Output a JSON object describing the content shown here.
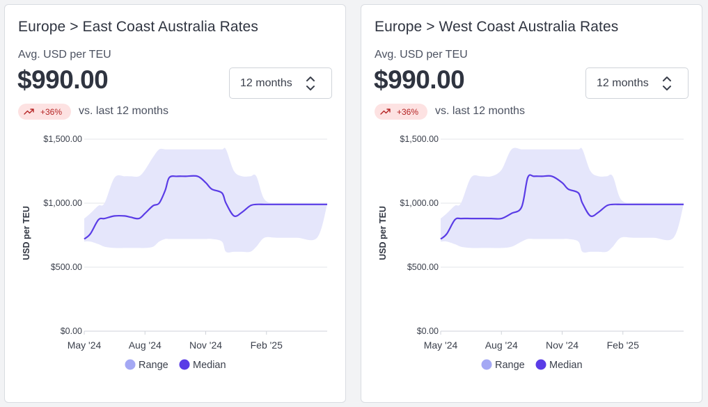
{
  "cards": [
    {
      "title": "Europe > East Coast Australia Rates",
      "subtitle": "Avg. USD per TEU",
      "value": "$990.00",
      "period_select": "12 months",
      "change_badge": "+36%",
      "comparison": "vs. last 12 months",
      "chart_data": {
        "type": "area",
        "ylabel": "USD per TEU",
        "y_ticks": [
          "$1,500.00",
          "$1,000.00",
          "$500.00",
          "$0.00"
        ],
        "x_ticks": [
          "May '24",
          "Aug '24",
          "Nov '24",
          "Feb '25"
        ],
        "ylim": [
          0,
          1500
        ],
        "xlim": [
          0,
          12
        ],
        "grid": "horizontal",
        "legend_placement": "bottom",
        "legend": [
          "Range",
          "Median"
        ],
        "x": [
          0,
          0.3,
          0.7,
          1.0,
          1.5,
          2.0,
          2.3,
          2.7,
          3.0,
          3.4,
          3.7,
          4.0,
          4.2,
          4.6,
          5.0,
          5.6,
          6.0,
          6.3,
          6.8,
          7.0,
          7.4,
          7.8,
          8.2,
          8.5,
          8.9,
          9.5,
          10.5,
          11.5,
          12.0
        ],
        "median": [
          720,
          760,
          870,
          880,
          900,
          900,
          890,
          880,
          920,
          980,
          1000,
          1100,
          1200,
          1210,
          1210,
          1210,
          1160,
          1110,
          1080,
          1000,
          900,
          930,
          980,
          990,
          990,
          990,
          990,
          990,
          990
        ],
        "range_upper": [
          880,
          920,
          980,
          1000,
          1200,
          1210,
          1210,
          1210,
          1260,
          1360,
          1420,
          1420,
          1420,
          1420,
          1420,
          1420,
          1420,
          1420,
          1420,
          1420,
          1250,
          1210,
          1210,
          1210,
          1030,
          1000,
          1000,
          1000,
          1000
        ],
        "range_lower": [
          700,
          700,
          680,
          660,
          650,
          650,
          650,
          650,
          650,
          660,
          700,
          720,
          720,
          720,
          720,
          720,
          720,
          720,
          700,
          620,
          620,
          620,
          620,
          660,
          730,
          730,
          730,
          730,
          990
        ],
        "colors": {
          "range": "#e5e6fb",
          "range_legend": "#a4a8f4",
          "median": "#5a3ce6"
        }
      }
    },
    {
      "title": "Europe > West Coast Australia Rates",
      "subtitle": "Avg. USD per TEU",
      "value": "$990.00",
      "period_select": "12 months",
      "change_badge": "+36%",
      "comparison": "vs. last 12 months",
      "chart_data": {
        "type": "area",
        "ylabel": "USD per TEU",
        "y_ticks": [
          "$1,500.00",
          "$1,000.00",
          "$500.00",
          "$0.00"
        ],
        "x_ticks": [
          "May '24",
          "Aug '24",
          "Nov '24",
          "Feb '25"
        ],
        "ylim": [
          0,
          1500
        ],
        "xlim": [
          0,
          12
        ],
        "grid": "horizontal",
        "legend_placement": "bottom",
        "legend": [
          "Range",
          "Median"
        ],
        "x": [
          0,
          0.3,
          0.7,
          1.0,
          1.5,
          2.0,
          2.5,
          3.0,
          3.5,
          4.0,
          4.3,
          4.6,
          5.0,
          5.5,
          6.0,
          6.3,
          6.8,
          7.0,
          7.4,
          7.8,
          8.2,
          8.5,
          8.9,
          9.5,
          10.5,
          11.5,
          12.0
        ],
        "median": [
          720,
          760,
          870,
          880,
          880,
          880,
          880,
          880,
          920,
          970,
          1200,
          1210,
          1210,
          1210,
          1160,
          1110,
          1080,
          1000,
          900,
          930,
          980,
          990,
          990,
          990,
          990,
          990,
          990
        ],
        "range_upper": [
          880,
          920,
          980,
          1000,
          1200,
          1210,
          1210,
          1260,
          1420,
          1420,
          1420,
          1420,
          1420,
          1420,
          1420,
          1420,
          1420,
          1420,
          1250,
          1210,
          1210,
          1210,
          1030,
          1000,
          1000,
          1000,
          1000
        ],
        "range_lower": [
          700,
          700,
          680,
          660,
          650,
          650,
          650,
          650,
          660,
          700,
          720,
          720,
          720,
          720,
          720,
          720,
          700,
          620,
          620,
          620,
          620,
          660,
          730,
          730,
          730,
          730,
          990
        ],
        "colors": {
          "range": "#e5e6fb",
          "range_legend": "#a4a8f4",
          "median": "#5a3ce6"
        }
      }
    }
  ]
}
